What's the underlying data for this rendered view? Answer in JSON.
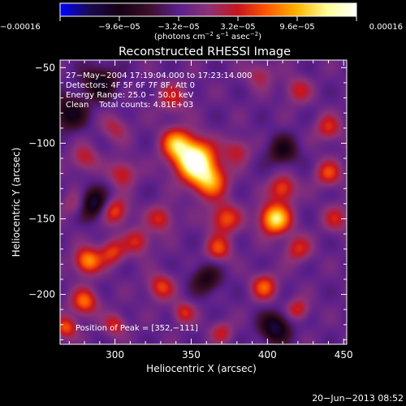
{
  "chart_data": {
    "type": "heatmap",
    "title": "Reconstructed RHESSI Image",
    "xlabel": "Heliocentric X (arcsec)",
    "ylabel": "Heliocentric Y (arcsec)",
    "xlim": [
      264,
      452
    ],
    "ylim": [
      -233,
      -45
    ],
    "x_ticks": [
      300,
      350,
      400,
      450
    ],
    "x_tick_labels": [
      "300",
      "350",
      "400",
      "450"
    ],
    "y_ticks": [
      -50,
      -100,
      -150,
      -200
    ],
    "y_tick_labels": [
      "−50",
      "−100",
      "−150",
      "−200"
    ],
    "colorbar": {
      "range": [
        -0.00016,
        0.00016
      ],
      "ticks": [
        -0.00016,
        -9.6e-05,
        -3.2e-05,
        3.2e-05,
        9.6e-05,
        0.00016
      ],
      "tick_labels": [
        "−0.00016",
        "−9.6e−05",
        "−3.2e−05",
        "3.2e−05",
        "9.6e−05",
        "0.00016"
      ],
      "unit_label": "(photons cm",
      "unit_exp1": "−2",
      "unit_mid": " s",
      "unit_exp2": "−1",
      "unit_mid2": " asec",
      "unit_exp3": "−2",
      "unit_close": ")",
      "colormap": [
        "#0000ff",
        "#1a0a50",
        "#140014",
        "#3c0f28",
        "#5a1f8c",
        "#8c3278",
        "#c8141e",
        "#ff5a00",
        "#ffb400",
        "#ffff96",
        "#ffffff"
      ]
    },
    "annotations": [
      "27−May−2004 17:19:04.000 to 17:23:14.000",
      "Detectors: 4F 5F 6F 7F 8F, Att 0",
      "Energy Range: 25.0 − 50.0 keV",
      "Clean    Total counts: 4.81E+03"
    ],
    "peak_label": "Position of Peak = [352,−111]",
    "peak": {
      "x": 352,
      "y": -111
    },
    "sources": [
      {
        "x": 352,
        "y": -111,
        "amp": 1.0,
        "sigma": 9
      },
      {
        "x": 362,
        "y": -125,
        "amp": 0.6,
        "sigma": 8
      },
      {
        "x": 340,
        "y": -100,
        "amp": 0.55,
        "sigma": 7
      },
      {
        "x": 372,
        "y": -150,
        "amp": 0.45,
        "sigma": 7
      },
      {
        "x": 368,
        "y": -170,
        "amp": 0.4,
        "sigma": 6
      },
      {
        "x": 330,
        "y": -150,
        "amp": 0.35,
        "sigma": 6
      },
      {
        "x": 315,
        "y": -165,
        "amp": 0.35,
        "sigma": 6
      },
      {
        "x": 298,
        "y": -172,
        "amp": 0.4,
        "sigma": 6
      },
      {
        "x": 282,
        "y": -178,
        "amp": 0.6,
        "sigma": 6
      },
      {
        "x": 300,
        "y": -145,
        "amp": 0.45,
        "sigma": 6
      },
      {
        "x": 280,
        "y": -205,
        "amp": 0.5,
        "sigma": 6
      },
      {
        "x": 268,
        "y": -222,
        "amp": 0.45,
        "sigma": 5
      },
      {
        "x": 300,
        "y": -220,
        "amp": 0.35,
        "sigma": 5
      },
      {
        "x": 330,
        "y": -195,
        "amp": 0.4,
        "sigma": 6
      },
      {
        "x": 345,
        "y": -212,
        "amp": 0.35,
        "sigma": 5
      },
      {
        "x": 370,
        "y": -225,
        "amp": 0.3,
        "sigma": 5
      },
      {
        "x": 405,
        "y": -150,
        "amp": 0.8,
        "sigma": 7
      },
      {
        "x": 410,
        "y": -130,
        "amp": 0.45,
        "sigma": 6
      },
      {
        "x": 420,
        "y": -170,
        "amp": 0.35,
        "sigma": 6
      },
      {
        "x": 398,
        "y": -195,
        "amp": 0.45,
        "sigma": 6
      },
      {
        "x": 420,
        "y": -210,
        "amp": 0.35,
        "sigma": 5
      },
      {
        "x": 440,
        "y": -120,
        "amp": 0.4,
        "sigma": 6
      },
      {
        "x": 440,
        "y": -90,
        "amp": 0.35,
        "sigma": 6
      },
      {
        "x": 420,
        "y": -65,
        "amp": 0.3,
        "sigma": 6
      },
      {
        "x": 395,
        "y": -55,
        "amp": 0.25,
        "sigma": 6
      },
      {
        "x": 338,
        "y": -70,
        "amp": 0.3,
        "sigma": 7
      },
      {
        "x": 300,
        "y": -90,
        "amp": 0.25,
        "sigma": 6
      },
      {
        "x": 280,
        "y": -110,
        "amp": 0.3,
        "sigma": 6
      },
      {
        "x": 305,
        "y": -120,
        "amp": 0.35,
        "sigma": 6
      },
      {
        "x": 380,
        "y": -105,
        "amp": 0.3,
        "sigma": 6
      },
      {
        "x": 445,
        "y": -150,
        "amp": 0.3,
        "sigma": 6
      },
      {
        "x": 275,
        "y": -140,
        "amp": 0.3,
        "sigma": 6
      },
      {
        "x": 285,
        "y": -140,
        "amp": -0.55,
        "sigma": 7
      },
      {
        "x": 290,
        "y": -60,
        "amp": -0.4,
        "sigma": 8
      },
      {
        "x": 405,
        "y": -222,
        "amp": -0.5,
        "sigma": 7
      },
      {
        "x": 270,
        "y": -80,
        "amp": -0.4,
        "sigma": 8
      },
      {
        "x": 410,
        "y": -105,
        "amp": -0.35,
        "sigma": 7
      },
      {
        "x": 360,
        "y": -190,
        "amp": -0.35,
        "sigma": 7
      }
    ]
  },
  "timestamp": "20−Jun−2013 08:52"
}
